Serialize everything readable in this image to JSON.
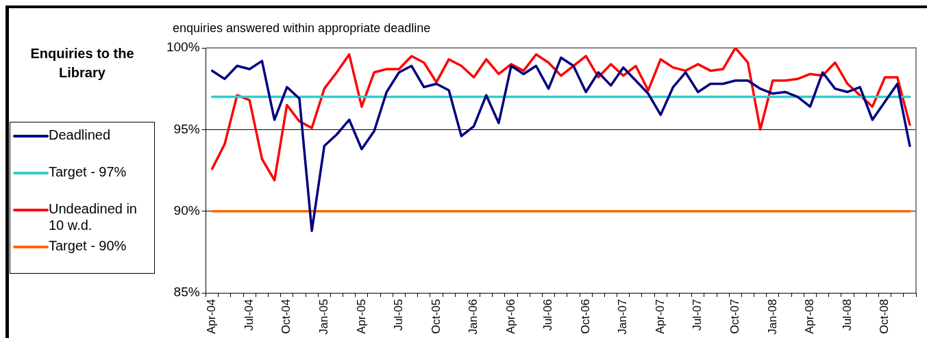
{
  "chart_data": {
    "type": "line",
    "title": "Enquiries to the Library",
    "subtitle": "enquiries answered within appropriate deadline",
    "categories": [
      "Apr-04",
      null,
      null,
      "Jul-04",
      null,
      null,
      "Oct-04",
      null,
      null,
      "Jan-05",
      null,
      null,
      "Apr-05",
      null,
      null,
      "Jul-05",
      null,
      null,
      "Oct-05",
      null,
      null,
      "Jan-06",
      null,
      null,
      "Apr-06",
      null,
      null,
      "Jul-06",
      null,
      null,
      "Oct-06",
      null,
      null,
      "Jan-07",
      null,
      null,
      "Apr-07",
      null,
      null,
      "Jul-07",
      null,
      null,
      "Oct-07",
      null,
      null,
      "Jan-08",
      null,
      null,
      "Apr-08",
      null,
      null,
      "Jul-08",
      null,
      null,
      "Oct-08",
      null,
      null
    ],
    "series": [
      {
        "name": "Deadlined",
        "color": "#000080",
        "values": [
          98.6,
          98.1,
          98.9,
          98.7,
          99.2,
          95.6,
          97.6,
          96.9,
          88.8,
          94.0,
          94.7,
          95.6,
          93.8,
          94.9,
          97.3,
          98.5,
          98.9,
          97.6,
          97.8,
          97.4,
          94.6,
          95.2,
          97.1,
          95.4,
          98.9,
          98.4,
          98.9,
          97.5,
          99.4,
          98.9,
          97.3,
          98.5,
          97.7,
          98.8,
          98.0,
          97.2,
          95.9,
          97.6,
          98.5,
          97.3,
          97.8,
          97.8,
          98.0,
          98.0,
          97.5,
          97.2,
          97.3,
          97.0,
          96.4,
          98.5,
          97.5,
          97.3,
          97.6,
          95.6,
          96.7,
          97.8,
          94.0
        ]
      },
      {
        "name": "Target - 97%",
        "color": "#33cccc",
        "values": [
          97,
          97,
          97,
          97,
          97,
          97,
          97,
          97,
          97,
          97,
          97,
          97,
          97,
          97,
          97,
          97,
          97,
          97,
          97,
          97,
          97,
          97,
          97,
          97,
          97,
          97,
          97,
          97,
          97,
          97,
          97,
          97,
          97,
          97,
          97,
          97,
          97,
          97,
          97,
          97,
          97,
          97,
          97,
          97,
          97,
          97,
          97,
          97,
          97,
          97,
          97,
          97,
          97,
          97,
          97,
          97,
          97
        ]
      },
      {
        "name": "Undeadined in 10 w.d.",
        "color": "#ff0000",
        "values": [
          92.6,
          94.1,
          97.1,
          96.8,
          93.2,
          91.9,
          96.5,
          95.5,
          95.1,
          97.5,
          98.5,
          99.6,
          96.4,
          98.5,
          98.7,
          98.7,
          99.5,
          99.1,
          97.9,
          99.3,
          98.9,
          98.2,
          99.3,
          98.4,
          99.0,
          98.6,
          99.6,
          99.1,
          98.3,
          98.9,
          99.5,
          98.2,
          99.0,
          98.3,
          98.9,
          97.4,
          99.3,
          98.8,
          98.6,
          99.0,
          98.6,
          98.7,
          100.0,
          99.1,
          95.0,
          98.0,
          98.0,
          98.1,
          98.4,
          98.3,
          99.1,
          97.8,
          97.1,
          96.4,
          98.2,
          98.2,
          95.3
        ]
      },
      {
        "name": "Target - 90%",
        "color": "#ff6600",
        "values": [
          90,
          90,
          90,
          90,
          90,
          90,
          90,
          90,
          90,
          90,
          90,
          90,
          90,
          90,
          90,
          90,
          90,
          90,
          90,
          90,
          90,
          90,
          90,
          90,
          90,
          90,
          90,
          90,
          90,
          90,
          90,
          90,
          90,
          90,
          90,
          90,
          90,
          90,
          90,
          90,
          90,
          90,
          90,
          90,
          90,
          90,
          90,
          90,
          90,
          90,
          90,
          90,
          90,
          90,
          90,
          90,
          90
        ]
      }
    ],
    "ylim": [
      85,
      100
    ],
    "yticks": [
      {
        "value": 85,
        "label": "85%"
      },
      {
        "value": 90,
        "label": "90%"
      },
      {
        "value": 95,
        "label": "95%"
      },
      {
        "value": 100,
        "label": "100%"
      }
    ],
    "grid": "y",
    "legend": "left",
    "marker": "none",
    "line_style": "solid"
  }
}
